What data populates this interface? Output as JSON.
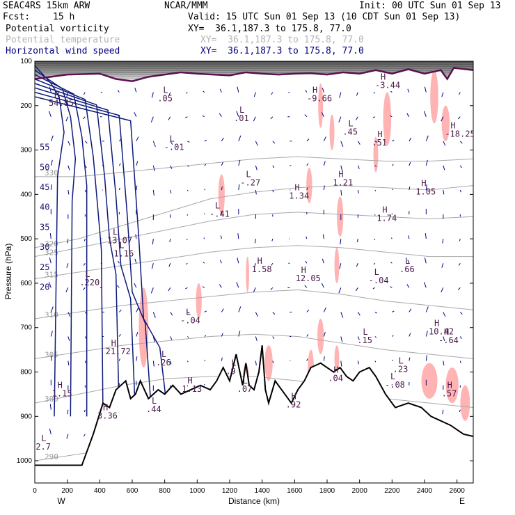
{
  "header": {
    "model": "SEAC4RS 15km ARW",
    "org": "NCAR/MMM",
    "init": "Init: 00 UTC Sun 01 Sep 13",
    "fcst_label": "Fcst:",
    "fcst_value": "15 h",
    "valid": "Valid: 15 UTC Sun 01 Sep 13 (10 CDT Sun 01 Sep 13)"
  },
  "fields": [
    {
      "name": "Potential vorticity",
      "xy": "XY=  36.1,187.3 to 175.8, 77.0",
      "color": "#000000"
    },
    {
      "name": "Potential temperature",
      "xy": "XY=  36.1,187.3 to 175.8, 77.0",
      "color": "#b4b4b4"
    },
    {
      "name": "Horizontal wind speed",
      "xy": "XY=  36.1,187.3 to 175.8, 77.0",
      "color": "#000080"
    }
  ],
  "chart_data": {
    "type": "cross-section",
    "xlabel": "Distance (km)",
    "ylabel": "Pressure (hPa)",
    "xlim": [
      0,
      2700
    ],
    "ylim": [
      1050,
      100
    ],
    "x_ticks": [
      "0",
      "200",
      "400",
      "600",
      "800",
      "1000",
      "1200",
      "1400",
      "1600",
      "1800",
      "2000",
      "2200",
      "2400",
      "2600"
    ],
    "y_ticks": [
      "100",
      "200",
      "300",
      "400",
      "500",
      "600",
      "700",
      "800",
      "900",
      "1000"
    ],
    "end_labels": {
      "left": "W",
      "right": "E"
    },
    "terrain": [
      [
        0,
        1010
      ],
      [
        290,
        1010
      ],
      [
        360,
        940
      ],
      [
        420,
        870
      ],
      [
        460,
        880
      ],
      [
        500,
        840
      ],
      [
        560,
        820
      ],
      [
        590,
        860
      ],
      [
        620,
        850
      ],
      [
        650,
        820
      ],
      [
        700,
        860
      ],
      [
        760,
        840
      ],
      [
        800,
        850
      ],
      [
        850,
        830
      ],
      [
        900,
        850
      ],
      [
        960,
        840
      ],
      [
        1020,
        830
      ],
      [
        1080,
        840
      ],
      [
        1120,
        820
      ],
      [
        1160,
        790
      ],
      [
        1200,
        820
      ],
      [
        1240,
        760
      ],
      [
        1280,
        830
      ],
      [
        1300,
        780
      ],
      [
        1320,
        830
      ],
      [
        1350,
        840
      ],
      [
        1380,
        800
      ],
      [
        1400,
        740
      ],
      [
        1420,
        840
      ],
      [
        1440,
        870
      ],
      [
        1480,
        820
      ],
      [
        1520,
        840
      ],
      [
        1560,
        860
      ],
      [
        1580,
        870
      ],
      [
        1620,
        840
      ],
      [
        1660,
        820
      ],
      [
        1700,
        790
      ],
      [
        1760,
        780
      ],
      [
        1800,
        790
      ],
      [
        1840,
        800
      ],
      [
        1880,
        790
      ],
      [
        1920,
        810
      ],
      [
        1960,
        820
      ],
      [
        2000,
        800
      ],
      [
        2060,
        790
      ],
      [
        2100,
        810
      ],
      [
        2160,
        850
      ],
      [
        2220,
        880
      ],
      [
        2300,
        870
      ],
      [
        2380,
        880
      ],
      [
        2440,
        900
      ],
      [
        2500,
        910
      ],
      [
        2560,
        920
      ],
      [
        2600,
        930
      ],
      [
        2640,
        940
      ],
      [
        2700,
        945
      ]
    ],
    "tropopause": [
      [
        0,
        140
      ],
      [
        200,
        130
      ],
      [
        400,
        128
      ],
      [
        500,
        140
      ],
      [
        600,
        145
      ],
      [
        700,
        135
      ],
      [
        800,
        130
      ],
      [
        900,
        125
      ],
      [
        1000,
        128
      ],
      [
        1100,
        130
      ],
      [
        1200,
        132
      ],
      [
        1300,
        125
      ],
      [
        1400,
        128
      ],
      [
        1500,
        130
      ],
      [
        1600,
        128
      ],
      [
        1700,
        127
      ],
      [
        1800,
        130
      ],
      [
        1900,
        125
      ],
      [
        2000,
        128
      ],
      [
        2100,
        120
      ],
      [
        2200,
        128
      ],
      [
        2300,
        118
      ],
      [
        2400,
        128
      ],
      [
        2500,
        120
      ],
      [
        2540,
        140
      ],
      [
        2580,
        115
      ],
      [
        2700,
        120
      ]
    ],
    "potential_temperature_levels": [
      {
        "label": "330",
        "p": [
          360,
          360,
          350,
          340,
          330,
          320,
          315,
          320,
          325,
          325,
          320
        ]
      },
      {
        "label": "325",
        "p": [
          540,
          520,
          500,
          480,
          460,
          445,
          440,
          445,
          450,
          455,
          450
        ]
      },
      {
        "label": "320",
        "p": [
          520,
          500,
          470,
          440,
          410,
          395,
          385,
          380,
          385,
          390,
          380
        ]
      },
      {
        "label": "315",
        "p": [
          590,
          575,
          560,
          545,
          530,
          520,
          515,
          520,
          530,
          540,
          540
        ]
      },
      {
        "label": "310",
        "p": [
          680,
          665,
          650,
          640,
          630,
          620,
          615,
          625,
          640,
          650,
          660
        ]
      },
      {
        "label": "305",
        "p": [
          770,
          755,
          740,
          730,
          720,
          715,
          720,
          735,
          750,
          760,
          770
        ]
      },
      {
        "label": "300",
        "p": [
          870,
          850,
          830,
          815,
          810,
          810,
          820,
          840,
          860,
          870,
          880
        ]
      },
      {
        "label": "290",
        "p": [
          1000,
          985,
          970,
          960,
          955,
          960,
          970,
          985,
          1000,
          1010,
          1015
        ]
      }
    ],
    "pv_contour_labels": [
      "55",
      "50",
      "45",
      "40",
      "35",
      "30",
      "25",
      "20"
    ],
    "highs_lows": [
      {
        "type": "H",
        "value": "54.85",
        "x": 120,
        "p": 200
      },
      {
        "type": "L",
        "value": ".05",
        "x": 790,
        "p": 190
      },
      {
        "type": "L",
        "value": "-.01",
        "x": 830,
        "p": 300
      },
      {
        "type": "L",
        "value": ".01",
        "x": 1260,
        "p": 235
      },
      {
        "type": "H",
        "value": "-9.66",
        "x": 1710,
        "p": 190
      },
      {
        "type": "H",
        "value": "-3.44",
        "x": 2130,
        "p": 160
      },
      {
        "type": "L",
        "value": ".45",
        "x": 1930,
        "p": 265
      },
      {
        "type": "H",
        "value": ".51",
        "x": 2110,
        "p": 290
      },
      {
        "type": "H",
        "value": "-18.25",
        "x": 2560,
        "p": 270
      },
      {
        "type": "L",
        "value": "-.27",
        "x": 1300,
        "p": 380
      },
      {
        "type": "H",
        "value": "1.21",
        "x": 1870,
        "p": 380
      },
      {
        "type": "H",
        "value": "1.34",
        "x": 1600,
        "p": 410
      },
      {
        "type": "H",
        "value": "1.05",
        "x": 2380,
        "p": 400
      },
      {
        "type": "L",
        "value": "-.41",
        "x": 1110,
        "p": 450
      },
      {
        "type": "H",
        "value": "1.74",
        "x": 2140,
        "p": 460
      },
      {
        "type": "L",
        "value": "1.16",
        "x": 520,
        "p": 540
      },
      {
        "type": "L",
        "value": "13.07",
        "x": 480,
        "p": 510
      },
      {
        "type": "H",
        "value": "1.58",
        "x": 1370,
        "p": 575
      },
      {
        "type": "H",
        "value": "12.05",
        "x": 1640,
        "p": 595
      },
      {
        "type": "L",
        "value": "-.04",
        "x": 2090,
        "p": 600
      },
      {
        "type": "L",
        "value": ".66",
        "x": 2280,
        "p": 575
      },
      {
        "type": "L",
        "value": ".220",
        "x": 310,
        "p": 605
      },
      {
        "type": "L",
        "value": "-.04",
        "x": 930,
        "p": 690
      },
      {
        "type": "H",
        "value": "10.42",
        "x": 2460,
        "p": 715
      },
      {
        "type": "H",
        "value": "-.64",
        "x": 2520,
        "p": 735
      },
      {
        "type": "L",
        "value": ".15",
        "x": 2020,
        "p": 735
      },
      {
        "type": "H",
        "value": "21.72",
        "x": 470,
        "p": 760
      },
      {
        "type": "L",
        "value": ".26",
        "x": 780,
        "p": 785
      },
      {
        "type": "H",
        "value": ".04",
        "x": 1840,
        "p": 820
      },
      {
        "type": "L",
        "value": ".23",
        "x": 2240,
        "p": 800
      },
      {
        "type": "L",
        "value": "-.08",
        "x": 2190,
        "p": 835
      },
      {
        "type": "H",
        "value": "1.13",
        "x": 940,
        "p": 845
      },
      {
        "type": "L",
        "value": ".07",
        "x": 1280,
        "p": 845
      },
      {
        "type": "H",
        "value": "1.15",
        "x": 140,
        "p": 855
      },
      {
        "type": "H",
        "value": ".57",
        "x": 2540,
        "p": 855
      },
      {
        "type": "H",
        "value": ".92",
        "x": 1580,
        "p": 880
      },
      {
        "type": "L",
        "value": ".44",
        "x": 720,
        "p": 890
      },
      {
        "type": "H",
        "value": "3.36",
        "x": 420,
        "p": 905
      },
      {
        "type": "L",
        "value": ".9",
        "x": 1210,
        "p": 805
      },
      {
        "type": "L",
        "value": "2.7",
        "x": 40,
        "p": 975
      }
    ],
    "grid": false
  }
}
